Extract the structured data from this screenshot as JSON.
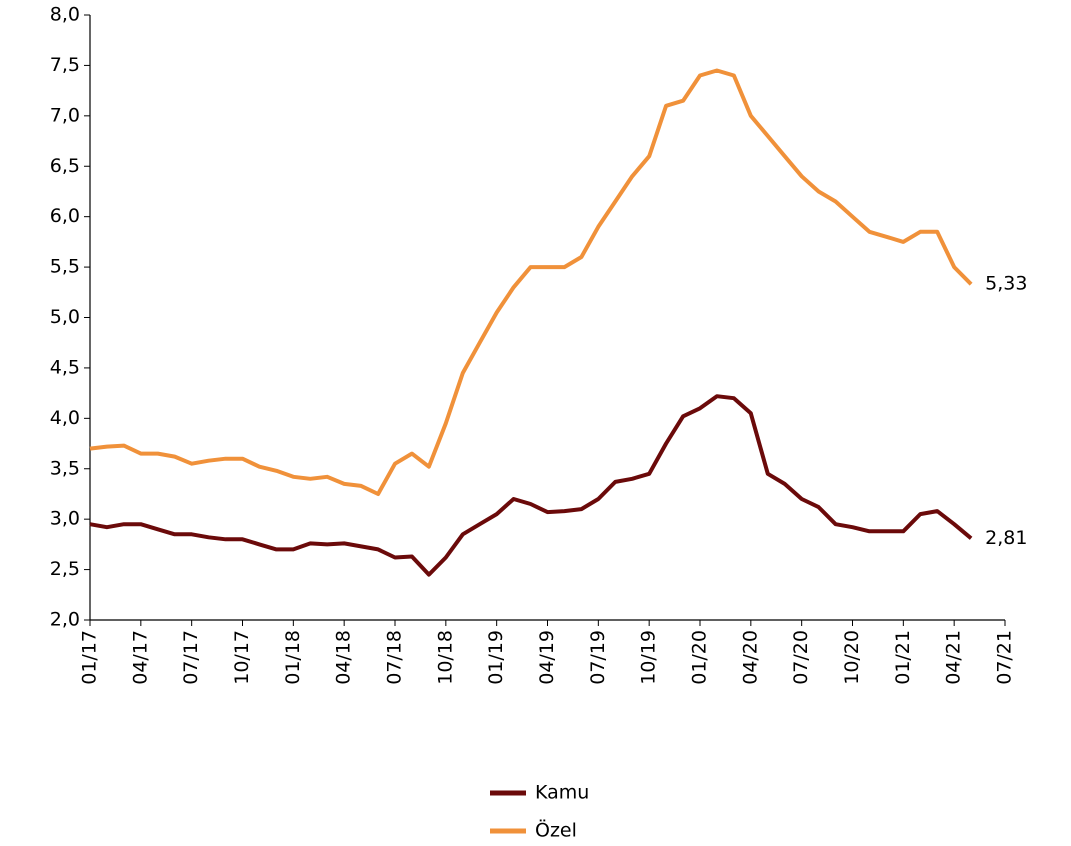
{
  "chart_data": {
    "type": "line",
    "x": [
      "01/17",
      "02/17",
      "03/17",
      "04/17",
      "05/17",
      "06/17",
      "07/17",
      "08/17",
      "09/17",
      "10/17",
      "11/17",
      "12/17",
      "01/18",
      "02/18",
      "03/18",
      "04/18",
      "05/18",
      "06/18",
      "07/18",
      "08/18",
      "09/18",
      "10/18",
      "11/18",
      "12/18",
      "01/19",
      "02/19",
      "03/19",
      "04/19",
      "05/19",
      "06/19",
      "07/19",
      "08/19",
      "09/19",
      "10/19",
      "11/19",
      "12/19",
      "01/20",
      "02/20",
      "03/20",
      "04/20",
      "05/20",
      "06/20",
      "07/20",
      "08/20",
      "09/20",
      "10/20",
      "11/20",
      "12/20",
      "01/21",
      "02/21",
      "03/21",
      "04/21",
      "05/21"
    ],
    "series": [
      {
        "name": "Kamu",
        "color": "#6b0a0a",
        "values": [
          2.95,
          2.92,
          2.95,
          2.95,
          2.9,
          2.85,
          2.85,
          2.82,
          2.8,
          2.8,
          2.75,
          2.7,
          2.7,
          2.76,
          2.75,
          2.76,
          2.73,
          2.7,
          2.62,
          2.63,
          2.45,
          2.62,
          2.85,
          2.95,
          3.05,
          3.2,
          3.15,
          3.07,
          3.08,
          3.1,
          3.2,
          3.37,
          3.4,
          3.45,
          3.75,
          4.02,
          4.1,
          4.22,
          4.2,
          4.05,
          3.45,
          3.35,
          3.2,
          3.12,
          2.95,
          2.92,
          2.88,
          2.88,
          2.88,
          3.05,
          3.08,
          2.95,
          2.81
        ],
        "end_label": "2,81"
      },
      {
        "name": "Özel",
        "color": "#f0913a",
        "values": [
          3.7,
          3.72,
          3.73,
          3.65,
          3.65,
          3.62,
          3.55,
          3.58,
          3.6,
          3.6,
          3.52,
          3.48,
          3.42,
          3.4,
          3.42,
          3.35,
          3.33,
          3.25,
          3.55,
          3.65,
          3.52,
          3.95,
          4.45,
          4.75,
          5.05,
          5.3,
          5.5,
          5.5,
          5.5,
          5.6,
          5.9,
          6.15,
          6.4,
          6.6,
          7.1,
          7.15,
          7.4,
          7.45,
          7.4,
          7.0,
          6.8,
          6.6,
          6.4,
          6.25,
          6.15,
          6.0,
          5.85,
          5.8,
          5.75,
          5.85,
          5.85,
          5.5,
          5.33
        ],
        "end_label": "5,33"
      }
    ],
    "xlim": [
      "01/17",
      "07/21"
    ],
    "xticks": [
      "01/17",
      "04/17",
      "07/17",
      "10/17",
      "01/18",
      "04/18",
      "07/18",
      "10/18",
      "01/19",
      "04/19",
      "07/19",
      "10/19",
      "01/20",
      "04/20",
      "07/20",
      "10/20",
      "01/21",
      "04/21",
      "07/21"
    ],
    "ylim": [
      2,
      8
    ],
    "yticks": [
      {
        "value": 2,
        "label": "2,0"
      },
      {
        "value": 2.5,
        "label": "2,5"
      },
      {
        "value": 3,
        "label": "3,0"
      },
      {
        "value": 3.5,
        "label": "3,5"
      },
      {
        "value": 4,
        "label": "4,0"
      },
      {
        "value": 4.5,
        "label": "4,5"
      },
      {
        "value": 5,
        "label": "5,0"
      },
      {
        "value": 5.5,
        "label": "5,5"
      },
      {
        "value": 6,
        "label": "6,0"
      },
      {
        "value": 6.5,
        "label": "6,5"
      },
      {
        "value": 7,
        "label": "7,0"
      },
      {
        "value": 7.5,
        "label": "7,5"
      },
      {
        "value": 8,
        "label": "8,0"
      }
    ]
  }
}
